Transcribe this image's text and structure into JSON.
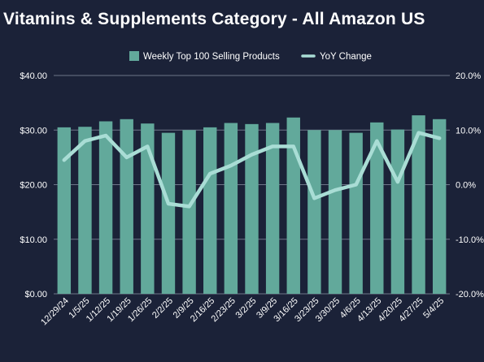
{
  "title": "Vitamins & Supplements Category - All Amazon US",
  "chart_data": {
    "type": "bar",
    "categories": [
      "12/29/24",
      "1/5/25",
      "1/12/25",
      "1/19/25",
      "1/26/25",
      "2/2/25",
      "2/9/25",
      "2/16/25",
      "2/23/25",
      "3/2/25",
      "3/9/25",
      "3/16/25",
      "3/23/25",
      "3/30/25",
      "4/6/25",
      "4/13/25",
      "4/20/25",
      "4/27/25",
      "5/4/25"
    ],
    "series": [
      {
        "name": "Weekly Top 100 Selling Products",
        "type": "bar",
        "axis": "left",
        "color": "#62a99b",
        "values": [
          30.5,
          30.6,
          31.6,
          32.0,
          31.2,
          29.5,
          30.0,
          30.5,
          31.3,
          31.1,
          31.3,
          32.3,
          30.0,
          30.0,
          29.5,
          31.4,
          30.1,
          32.7,
          32.0
        ]
      },
      {
        "name": "YoY Change",
        "type": "line",
        "axis": "right",
        "color": "#a9ddd5",
        "values": [
          4.5,
          8.0,
          9.0,
          5.0,
          7.0,
          -3.5,
          -4.0,
          2.0,
          3.5,
          5.5,
          7.0,
          7.0,
          -2.5,
          -1.0,
          0.0,
          8.0,
          0.5,
          9.5,
          8.5
        ]
      }
    ],
    "y_left": {
      "min": 0,
      "max": 40,
      "ticks": [
        "$0.00",
        "$10.00",
        "$20.00",
        "$30.00",
        "$40.00"
      ]
    },
    "y_right": {
      "min": -20,
      "max": 20,
      "ticks": [
        "-20.0%",
        "-10.0%",
        "0.0%",
        "10.0%",
        "20.0%"
      ]
    },
    "legend": {
      "position": "top-center"
    },
    "grid": true
  }
}
